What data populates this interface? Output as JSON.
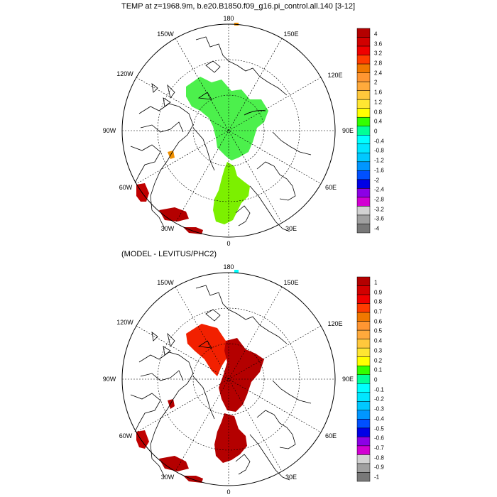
{
  "panels": [
    {
      "title": "TEMP at z=1968.9m, b.e20.B1850.f09_g16.pi_control.all.140 [3-12]",
      "lon_labels": [
        "180",
        "150E",
        "120E",
        "90E",
        "60E",
        "30E",
        "0",
        "30W",
        "60W",
        "90W",
        "120W",
        "150W"
      ],
      "colorbar": {
        "labels": [
          "4",
          "3.6",
          "3.2",
          "2.8",
          "2.4",
          "2",
          "1.6",
          "1.2",
          "0.8",
          "0.4",
          "0",
          "-0.4",
          "-0.8",
          "-1.2",
          "-1.6",
          "-2",
          "-2.4",
          "-2.8",
          "-3.2",
          "-3.6",
          "-4"
        ],
        "colors": [
          "#b40000",
          "#d20000",
          "#f00000",
          "#ff3c00",
          "#f07800",
          "#ff9632",
          "#ffaa3c",
          "#ffc83c",
          "#ffe632",
          "#ffff00",
          "#32ff00",
          "#00ff96",
          "#00ffff",
          "#00e6ff",
          "#00c8ff",
          "#0096ff",
          "#0050ff",
          "#0000e6",
          "#8c00e6",
          "#d200d2",
          "#d2d2d2",
          "#a0a0a0",
          "#787878"
        ]
      }
    },
    {
      "title": "(MODEL - LEVITUS/PHC2)",
      "lon_labels": [
        "180",
        "150E",
        "120E",
        "90E",
        "60E",
        "30E",
        "0",
        "30W",
        "60W",
        "90W",
        "120W",
        "150W"
      ],
      "colorbar": {
        "labels": [
          "1",
          "0.9",
          "0.8",
          "0.7",
          "0.6",
          "0.5",
          "0.4",
          "0.3",
          "0.2",
          "0.1",
          "0",
          "-0.1",
          "-0.2",
          "-0.3",
          "-0.4",
          "-0.5",
          "-0.6",
          "-0.7",
          "-0.8",
          "-0.9",
          "-1"
        ],
        "colors": [
          "#b40000",
          "#d20000",
          "#f00000",
          "#ff3c00",
          "#f07800",
          "#ff9632",
          "#ffaa3c",
          "#ffc83c",
          "#ffe632",
          "#ffff00",
          "#32ff00",
          "#00ff96",
          "#00ffff",
          "#00e6ff",
          "#00c8ff",
          "#0096ff",
          "#0050ff",
          "#0000e6",
          "#8c00e6",
          "#d200d2",
          "#d2d2d2",
          "#a0a0a0",
          "#787878"
        ]
      }
    }
  ],
  "palette": {
    "green_region": "#4cf04c",
    "lime_region": "#7cf000",
    "red_region": "#f22000",
    "darkred_region": "#b40000",
    "orange_region": "#f09000",
    "land_line": "#000000"
  }
}
